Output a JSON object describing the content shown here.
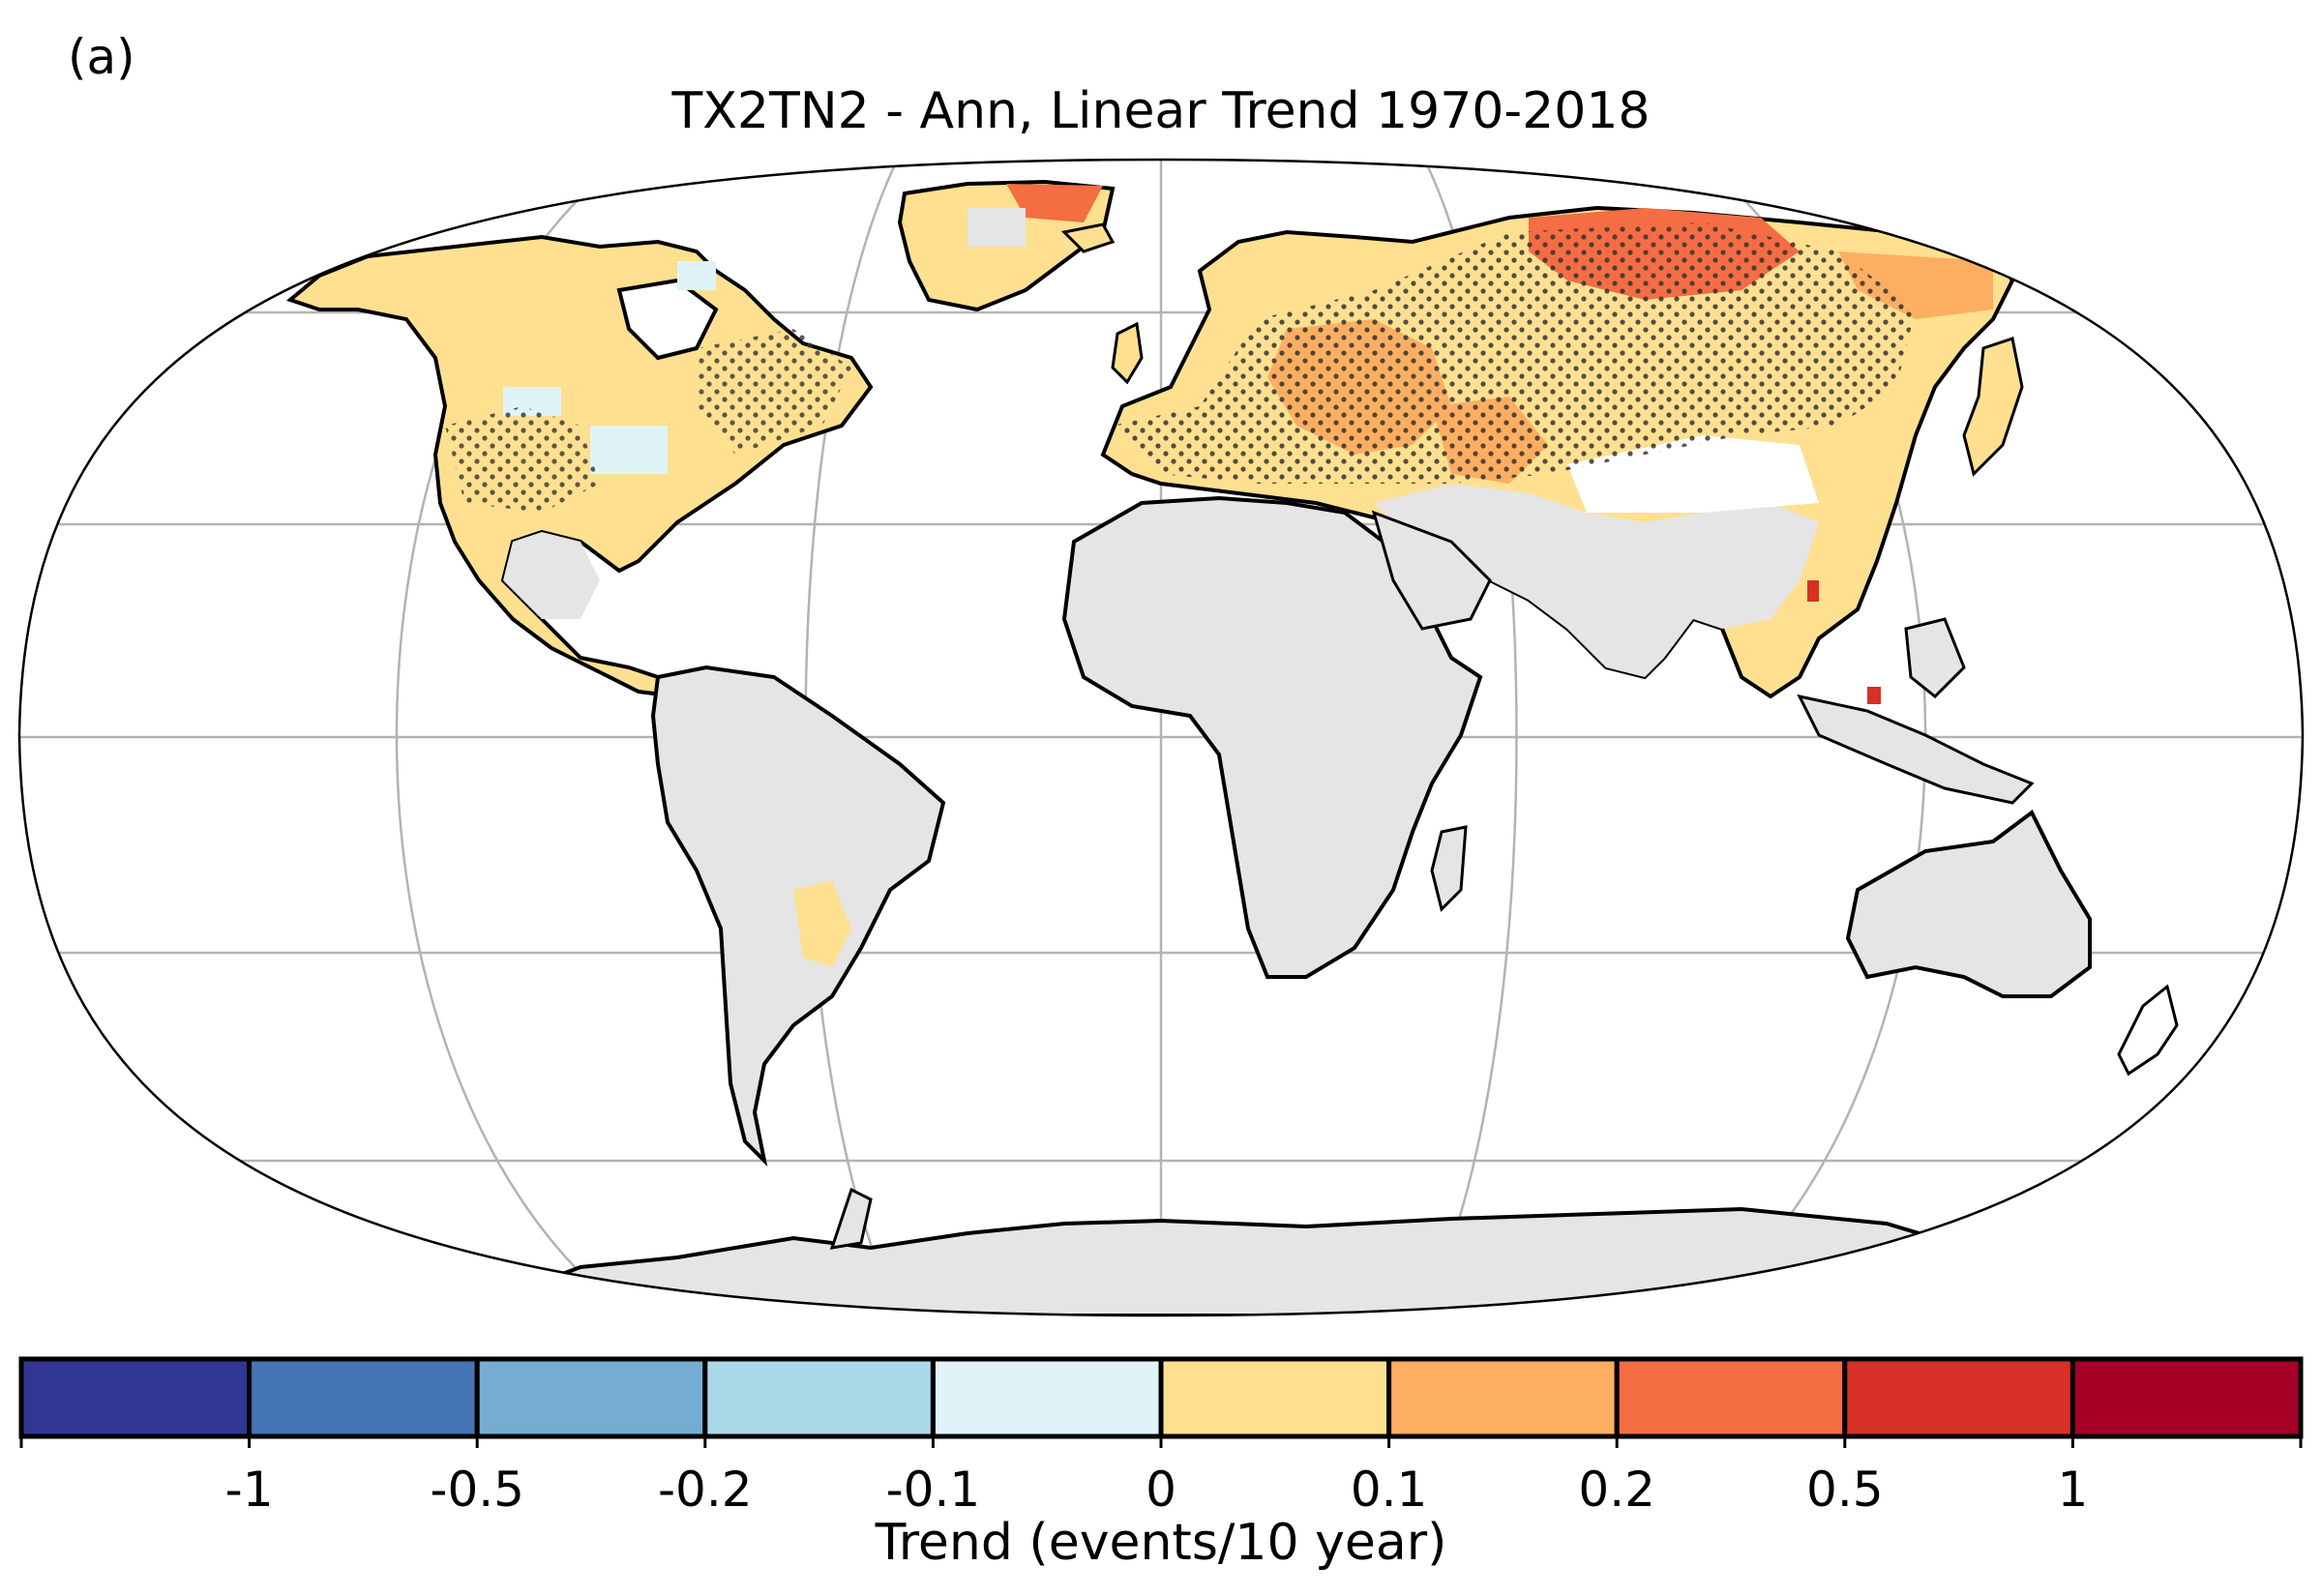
{
  "panel_label": "(a)",
  "title": "TX2TN2 - Ann, Linear Trend 1970-2018",
  "colorbar": {
    "label": "Trend (events/10 year)",
    "ticks": [
      "-1",
      "-0.5",
      "-0.2",
      "-0.1",
      "0",
      "0.1",
      "0.2",
      "0.5",
      "1"
    ],
    "colors": [
      "#313695",
      "#4575b4",
      "#74add1",
      "#abd9e9",
      "#e0f3f8",
      "#fee090",
      "#fdae61",
      "#f46d43",
      "#d73027",
      "#a50026"
    ]
  },
  "map": {
    "projection": "Robinson",
    "no_data_color": "#e5e5e5",
    "stippling": "significant trend"
  }
}
